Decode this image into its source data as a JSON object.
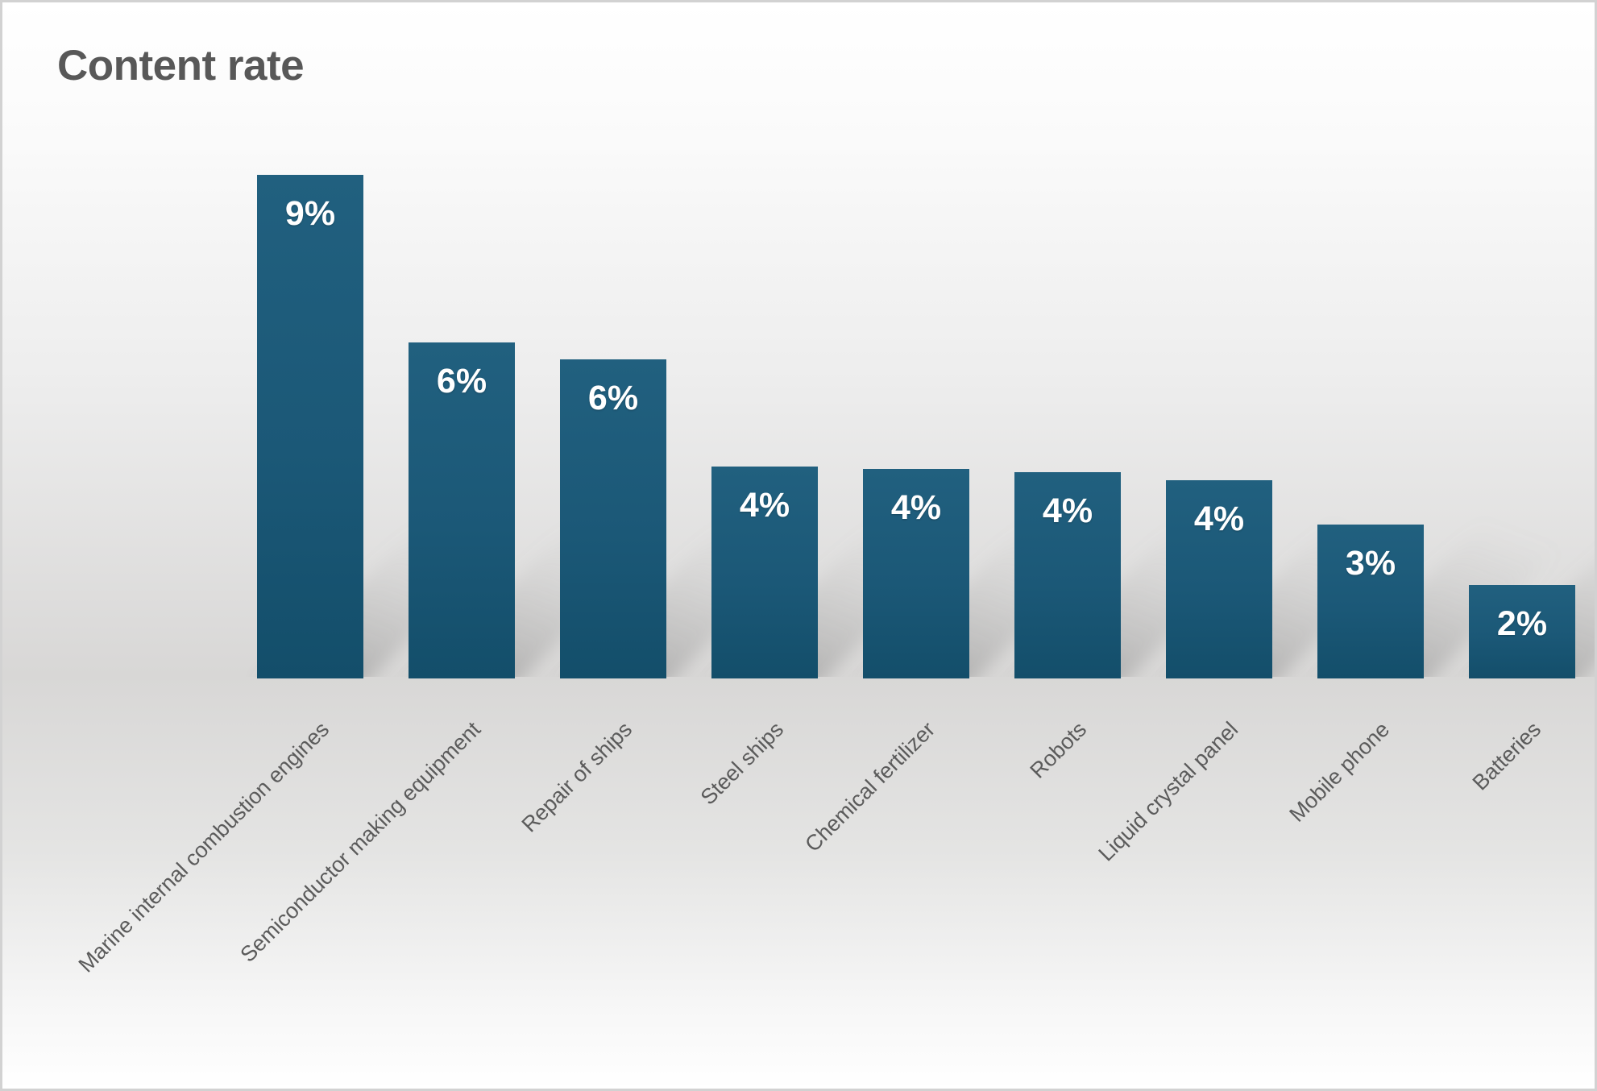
{
  "chart_data": {
    "type": "bar",
    "title": "Content rate",
    "categories": [
      "Marine internal combustion engines",
      "Semiconductor making equipment",
      "Repair of ships",
      "Steel ships",
      "Chemical fertilizer",
      "Robots",
      "Liquid crystal panel",
      "Mobile phone",
      "Batteries"
    ],
    "values": [
      9.0,
      6.0,
      5.7,
      3.79,
      3.74,
      3.69,
      3.54,
      2.75,
      1.67
    ],
    "value_labels": [
      "9%",
      "6%",
      "6%",
      "4%",
      "4%",
      "4%",
      "4%",
      "3%",
      "2%"
    ],
    "xlabel": "",
    "ylabel": "",
    "ylim": [
      0,
      9.6
    ],
    "grid": false,
    "legend": false,
    "value_label_position": "inside-top",
    "x_tick_rotation_deg": 45,
    "colors": {
      "bar_top": "#21607f",
      "bar_mid": "#1b5877",
      "bar_bottom": "#134e6a",
      "value_label": "#ffffff",
      "axis_label": "#5b5b5b",
      "title": "#585858",
      "shadow": "#6b6b6b",
      "canvas_border": "#d2d2d2"
    }
  }
}
